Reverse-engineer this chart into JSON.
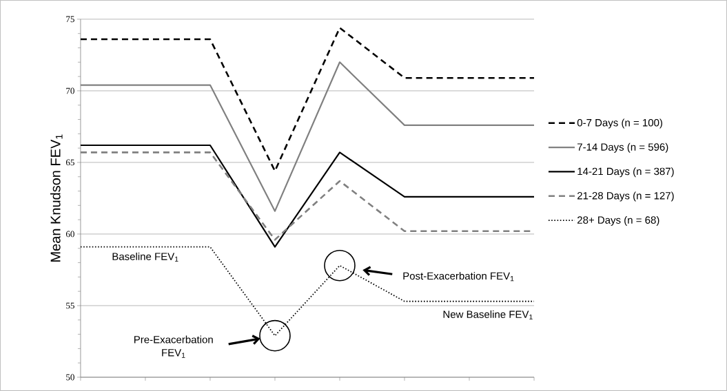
{
  "chart_data": {
    "type": "line",
    "ylabel": "Mean Knudson FEV$_{1}$",
    "categories": [
      null,
      null,
      null,
      null,
      null,
      null,
      null,
      null
    ],
    "ylim": [
      50,
      75
    ],
    "yticks": [
      50,
      55,
      60,
      65,
      70,
      75
    ],
    "tick_labels": "y",
    "grid": "y",
    "legend": "right",
    "series": [
      {
        "name": "0-7 Days (n = 100)",
        "color": "#000000",
        "line_style": "dashed",
        "values": [
          73.6,
          73.6,
          73.6,
          64.4,
          74.4,
          70.9,
          70.9,
          70.9
        ]
      },
      {
        "name": "7-14 Days (n = 596)",
        "color": "#808080",
        "line_style": "solid",
        "values": [
          70.4,
          70.4,
          70.4,
          61.6,
          72.0,
          67.6,
          67.6,
          67.6
        ]
      },
      {
        "name": "14-21 Days (n = 387)",
        "color": "#000000",
        "line_style": "solid",
        "values": [
          66.2,
          66.2,
          66.2,
          59.1,
          65.7,
          62.6,
          62.6,
          62.6
        ]
      },
      {
        "name": "21-28 Days (n = 127)",
        "color": "#808080",
        "line_style": "dashed",
        "values": [
          65.7,
          65.7,
          65.7,
          59.6,
          63.7,
          60.2,
          60.2,
          60.2
        ]
      },
      {
        "name": "28+ Days (n = 68)",
        "color": "#000000",
        "line_style": "dotted",
        "values": [
          59.1,
          59.1,
          59.1,
          52.9,
          57.8,
          55.3,
          55.3,
          55.3
        ]
      }
    ],
    "annotations": [
      "Baseline FEV$_{1}$",
      "Pre-Exacerbation FEV$_{1}$",
      "Post-Exacerbation FEV$_{1}$",
      "New Baseline FEV$_{1}$"
    ]
  }
}
